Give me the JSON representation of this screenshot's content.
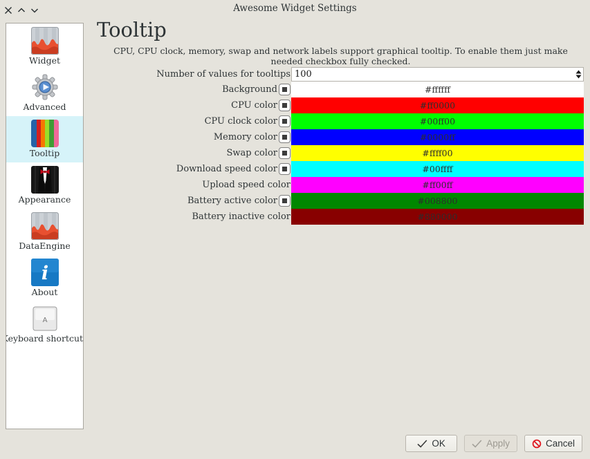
{
  "window": {
    "title": "Awesome Widget Settings"
  },
  "titlebar": {
    "icons": [
      "close-icon",
      "chevron-up-icon",
      "chevron-down-icon"
    ]
  },
  "sidebar": {
    "selected_background": "#d6f3f9",
    "items": [
      {
        "label": "Widget",
        "icon": "chart-icon",
        "selected": false
      },
      {
        "label": "Advanced",
        "icon": "gear-icon",
        "selected": false
      },
      {
        "label": "Tooltip",
        "icon": "stripes-icon",
        "selected": true
      },
      {
        "label": "Appearance",
        "icon": "tuxedo-icon",
        "selected": false
      },
      {
        "label": "DataEngine",
        "icon": "chart-icon",
        "selected": false
      },
      {
        "label": "About",
        "icon": "info-icon",
        "selected": false
      },
      {
        "label": "Keyboard shortcuts",
        "icon": "keyboard-icon",
        "selected": false
      }
    ]
  },
  "main": {
    "heading": "Tooltip",
    "description": "CPU, CPU clock, memory, swap and network labels support graphical tooltip. To enable them just make needed checkbox fully checked.",
    "tooltip_values": {
      "label": "Number of values for tooltips",
      "value": "100"
    },
    "color_rows": [
      {
        "label": "Background",
        "checkbox": true,
        "checkbox_state": "partially-checked",
        "color": "#ffffff",
        "value": "#ffffff"
      },
      {
        "label": "CPU color",
        "checkbox": true,
        "checkbox_state": "partially-checked",
        "color": "#ff0000",
        "value": "#ff0000"
      },
      {
        "label": "CPU clock color",
        "checkbox": true,
        "checkbox_state": "partially-checked",
        "color": "#00ff00",
        "value": "#00ff00"
      },
      {
        "label": "Memory color",
        "checkbox": true,
        "checkbox_state": "partially-checked",
        "color": "#0000ff",
        "value": "#0000ff"
      },
      {
        "label": "Swap color",
        "checkbox": true,
        "checkbox_state": "partially-checked",
        "color": "#ffff00",
        "value": "#ffff00"
      },
      {
        "label": "Download speed color",
        "checkbox": true,
        "checkbox_state": "partially-checked",
        "color": "#00ffff",
        "value": "#00ffff"
      },
      {
        "label": "Upload speed color",
        "checkbox": false,
        "checkbox_state": null,
        "color": "#ff00ff",
        "value": "#ff00ff"
      },
      {
        "label": "Battery active color",
        "checkbox": true,
        "checkbox_state": "partially-checked",
        "color": "#008800",
        "value": "#008800"
      },
      {
        "label": "Battery inactive color",
        "checkbox": false,
        "checkbox_state": null,
        "color": "#880000",
        "value": "#880000"
      }
    ]
  },
  "footer": {
    "ok_label": "OK",
    "apply_label": "Apply",
    "apply_disabled": true,
    "cancel_label": "Cancel",
    "cancel_icon_color": "#e01b24"
  },
  "colors": {
    "window_background": "#e5e3dc",
    "sidebar_background": "#ffffff",
    "text": "#2e3436"
  }
}
